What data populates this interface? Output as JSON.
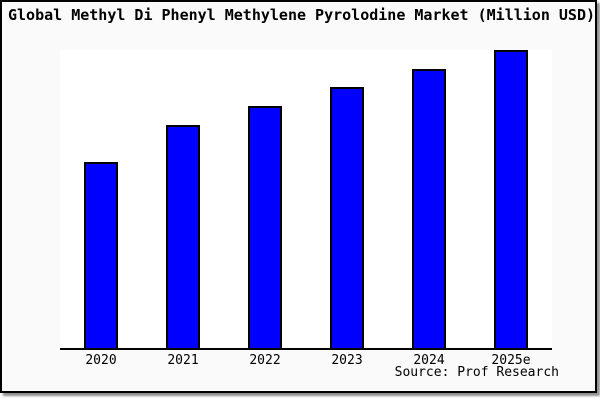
{
  "chart_data": {
    "type": "bar",
    "title": "Global Methyl Di Phenyl Methylene Pyrolodine Market (Million USD)",
    "categories": [
      "2020",
      "2021",
      "2022",
      "2023",
      "2024",
      "2025e"
    ],
    "values": [
      62.7,
      75.0,
      81.3,
      87.7,
      93.7,
      100.0
    ],
    "value_basis": "relative height, percent of 2025e bar (no y-axis scale shown)",
    "xlabel": "",
    "ylabel": "",
    "ylim": [
      0,
      100
    ],
    "grid": false,
    "legend_position": "none",
    "source_note": "Source: Prof Research",
    "bar_color": "#0000ff",
    "bar_border_color": "#000000"
  },
  "colors": {
    "figure_background": "#fafafa",
    "plot_background": "#ffffff",
    "frame_border": "#000000",
    "shadow": "#8f8f8f",
    "text": "#000000"
  }
}
